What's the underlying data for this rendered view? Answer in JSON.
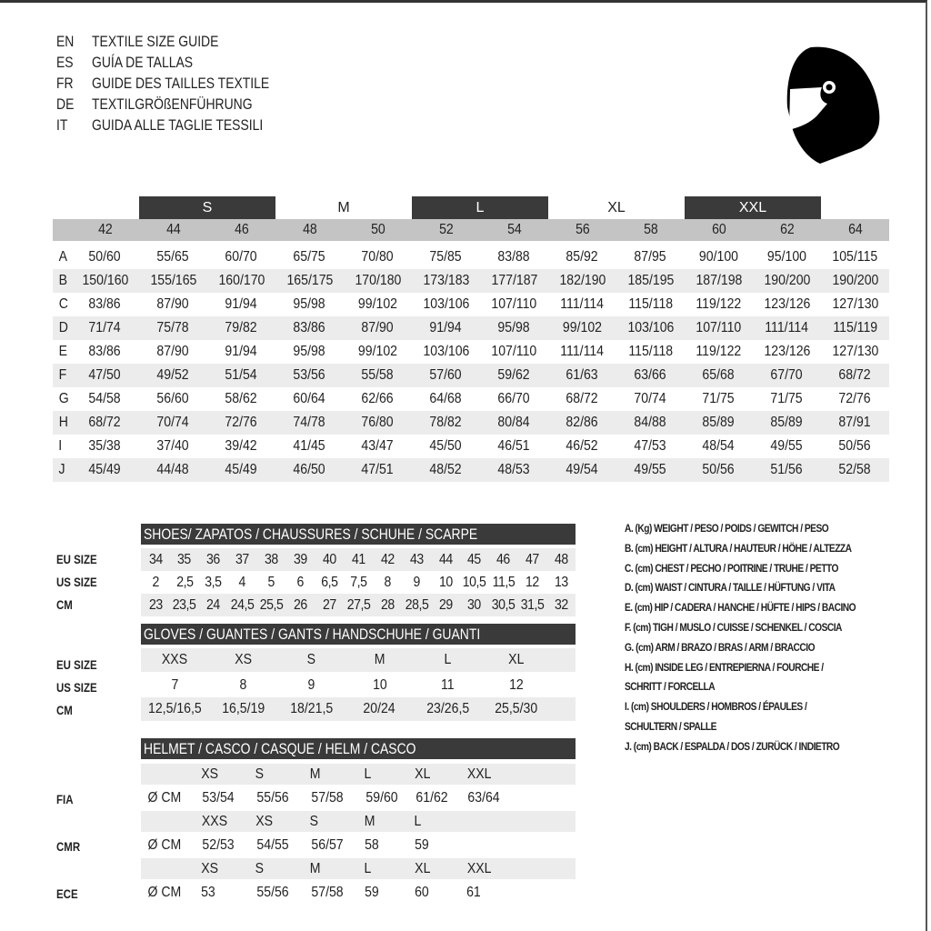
{
  "titles": [
    {
      "code": "EN",
      "text": "TEXTILE SIZE GUIDE"
    },
    {
      "code": "ES",
      "text": "GUÍA DE TALLAS"
    },
    {
      "code": "FR",
      "text": "GUIDE DES TAILLES TEXTILE"
    },
    {
      "code": "DE",
      "text": "TEXTILGRÖßENFÜHRUNG"
    },
    {
      "code": "IT",
      "text": "GUIDA ALLE TAGLIE TESSILI"
    }
  ],
  "logo": {
    "icon": "helmet-icon"
  },
  "colors": {
    "dark_bar": "#3a3a3a",
    "header_grey": "#c4c4c4",
    "stripe": "#ececec"
  },
  "textile": {
    "size_groups": [
      "S",
      "M",
      "L",
      "XL",
      "XXL"
    ],
    "eu_sizes": [
      "42",
      "44",
      "46",
      "48",
      "50",
      "52",
      "54",
      "56",
      "58",
      "60",
      "62",
      "64"
    ],
    "rows": [
      {
        "label": "A",
        "values": [
          "50/60",
          "55/65",
          "60/70",
          "65/75",
          "70/80",
          "75/85",
          "83/88",
          "85/92",
          "87/95",
          "90/100",
          "95/100",
          "105/115"
        ]
      },
      {
        "label": "B",
        "values": [
          "150/160",
          "155/165",
          "160/170",
          "165/175",
          "170/180",
          "173/183",
          "177/187",
          "182/190",
          "185/195",
          "187/198",
          "190/200",
          "190/200"
        ]
      },
      {
        "label": "C",
        "values": [
          "83/86",
          "87/90",
          "91/94",
          "95/98",
          "99/102",
          "103/106",
          "107/110",
          "111/114",
          "115/118",
          "119/122",
          "123/126",
          "127/130"
        ]
      },
      {
        "label": "D",
        "values": [
          "71/74",
          "75/78",
          "79/82",
          "83/86",
          "87/90",
          "91/94",
          "95/98",
          "99/102",
          "103/106",
          "107/110",
          "111/114",
          "115/119"
        ]
      },
      {
        "label": "E",
        "values": [
          "83/86",
          "87/90",
          "91/94",
          "95/98",
          "99/102",
          "103/106",
          "107/110",
          "111/114",
          "115/118",
          "119/122",
          "123/126",
          "127/130"
        ]
      },
      {
        "label": "F",
        "values": [
          "47/50",
          "49/52",
          "51/54",
          "53/56",
          "55/58",
          "57/60",
          "59/62",
          "61/63",
          "63/66",
          "65/68",
          "67/70",
          "68/72"
        ]
      },
      {
        "label": "G",
        "values": [
          "54/58",
          "56/60",
          "58/62",
          "60/64",
          "62/66",
          "64/68",
          "66/70",
          "68/72",
          "70/74",
          "71/75",
          "71/75",
          "72/76"
        ]
      },
      {
        "label": "H",
        "values": [
          "68/72",
          "70/74",
          "72/76",
          "74/78",
          "76/80",
          "78/82",
          "80/84",
          "82/86",
          "84/88",
          "85/89",
          "85/89",
          "87/91"
        ]
      },
      {
        "label": "I",
        "values": [
          "35/38",
          "37/40",
          "39/42",
          "41/45",
          "43/47",
          "45/50",
          "46/51",
          "46/52",
          "47/53",
          "48/54",
          "49/55",
          "50/56"
        ]
      },
      {
        "label": "J",
        "values": [
          "45/49",
          "44/48",
          "45/49",
          "46/50",
          "47/51",
          "48/52",
          "48/53",
          "49/54",
          "49/55",
          "50/56",
          "51/56",
          "52/58"
        ]
      }
    ]
  },
  "shoes": {
    "title": "SHOES/ ZAPATOS / CHAUSSURES / SCHUHE / SCARPE",
    "rows": [
      {
        "label": "EU SIZE",
        "values": [
          "34",
          "35",
          "36",
          "37",
          "38",
          "39",
          "40",
          "41",
          "42",
          "43",
          "44",
          "45",
          "46",
          "47",
          "48"
        ]
      },
      {
        "label": "US SIZE",
        "values": [
          "2",
          "2,5",
          "3,5",
          "4",
          "5",
          "6",
          "6,5",
          "7,5",
          "8",
          "9",
          "10",
          "10,5",
          "11,5",
          "12",
          "13"
        ]
      },
      {
        "label": "CM",
        "values": [
          "23",
          "23,5",
          "24",
          "24,5",
          "25,5",
          "26",
          "27",
          "27,5",
          "28",
          "28,5",
          "29",
          "30",
          "30,5",
          "31,5",
          "32"
        ]
      }
    ]
  },
  "gloves": {
    "title": "GLOVES / GUANTES / GANTS / HANDSCHUHE / GUANTI",
    "rows": [
      {
        "label": "EU SIZE",
        "values": [
          "XXS",
          "XS",
          "S",
          "M",
          "L",
          "XL"
        ]
      },
      {
        "label": "US SIZE",
        "values": [
          "7",
          "8",
          "9",
          "10",
          "11",
          "12"
        ]
      },
      {
        "label": "CM",
        "values": [
          "12,5/16,5",
          "16,5/19",
          "18/21,5",
          "20/24",
          "23/26,5",
          "25,5/30"
        ]
      }
    ]
  },
  "helmet": {
    "title": "HELMET / CASCO / CASQUE / HELM / CASCO",
    "unit": "Ø CM",
    "standards": [
      {
        "label": "FIA",
        "sizes": [
          "XS",
          "S",
          "M",
          "L",
          "XL",
          "XXL"
        ],
        "values": [
          "53/54",
          "55/56",
          "57/58",
          "59/60",
          "61/62",
          "63/64"
        ]
      },
      {
        "label": "CMR",
        "sizes": [
          "XXS",
          "XS",
          "S",
          "M",
          "L"
        ],
        "values": [
          "52/53",
          "54/55",
          "56/57",
          "58",
          "59"
        ]
      },
      {
        "label": "ECE",
        "sizes": [
          "XS",
          "S",
          "M",
          "L",
          "XL",
          "XXL"
        ],
        "values": [
          "53",
          "55/56",
          "57/58",
          "59",
          "60",
          "61"
        ]
      }
    ]
  },
  "legend": [
    "A. (Kg) WEIGHT / PESO / POIDS / GEWITCH / PESO",
    "B. (cm) HEIGHT / ALTURA / HAUTEUR / HÖHE / ALTEZZA",
    "C. (cm) CHEST / PECHO / POITRINE / TRUHE / PETTO",
    "D. (cm) WAIST / CINTURA / TAILLE / HÜFTUNG / VITA",
    "E. (cm) HIP / CADERA / HANCHE / HÜFTE / HIPS /  BACINO",
    "F.  (cm) TIGH / MUSLO / CUISSE / SCHENKEL / COSCIA",
    "G. (cm) ARM  / BRAZO / BRAS / ARM / BRACCIO",
    "H. (cm) INSIDE LEG / ENTREPIERNA / FOURCHE /",
    "SCHRITT / FORCELLA",
    "I.  (cm) SHOULDERS / HOMBROS / ÉPAULES /",
    "SCHULTERN / SPALLE",
    "J. (cm) BACK / ESPALDA / DOS / ZURÜCK / INDIETRO"
  ]
}
